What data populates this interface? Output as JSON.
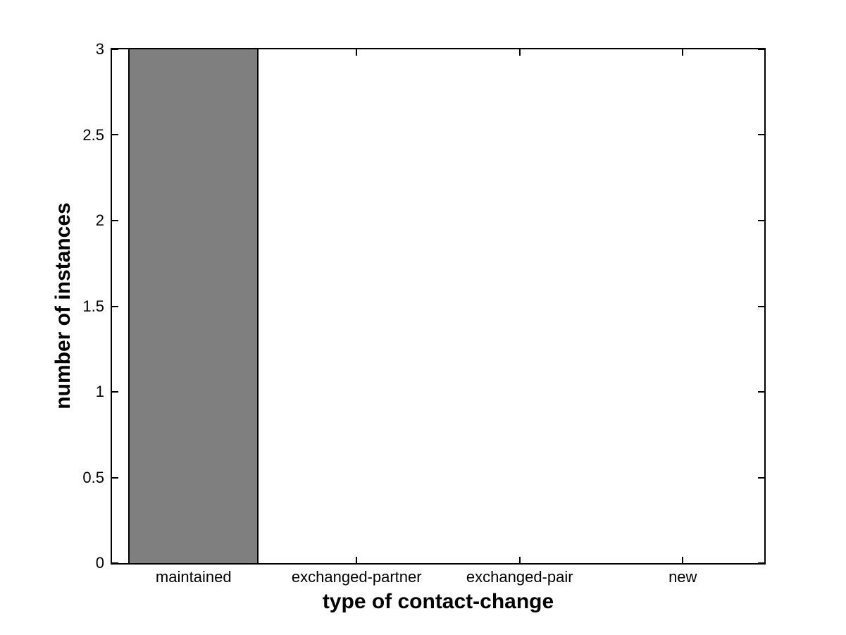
{
  "figure": {
    "background_color": "#ffffff",
    "axis_color": "#000000"
  },
  "chart_data": {
    "type": "bar",
    "title": "",
    "xlabel": "type of contact-change",
    "ylabel": "number of instances",
    "categories": [
      "maintained",
      "exchanged-partner",
      "exchanged-pair",
      "new"
    ],
    "values": [
      3,
      0,
      0,
      0
    ],
    "ylim": [
      0,
      3
    ],
    "yticks": [
      0,
      0.5,
      1,
      1.5,
      2,
      2.5,
      3
    ],
    "ytick_labels": [
      "0",
      "0.5",
      "1",
      "1.5",
      "2",
      "2.5",
      "3"
    ],
    "bar_width_fraction": 0.8,
    "bar_color": "#7f7f7f",
    "bar_edge_color": "#000000",
    "grid": false,
    "legend": false,
    "box": true,
    "tick_direction": "in"
  }
}
